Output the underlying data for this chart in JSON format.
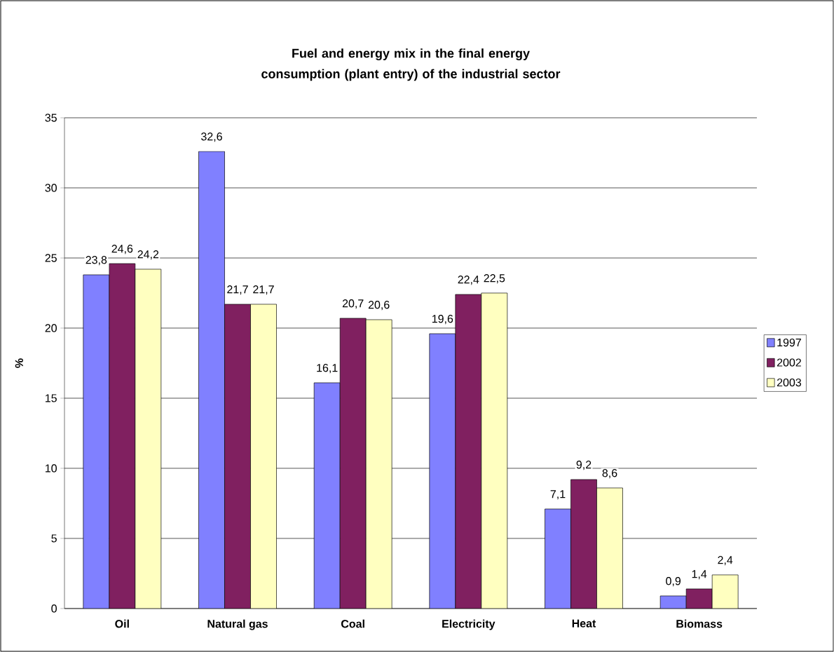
{
  "chart_data": {
    "type": "bar",
    "title": "Fuel and energy mix in the final energy consumption (plant entry) of the industrial sector",
    "ylabel": "%",
    "categories": [
      "Oil",
      "Natural gas",
      "Coal",
      "Electricity",
      "Heat",
      "Biomass"
    ],
    "series": [
      {
        "name": "1997",
        "color": "#8080ff",
        "values": [
          23.8,
          32.6,
          16.1,
          19.6,
          7.1,
          0.9
        ],
        "value_labels": [
          "23,8",
          "32,6",
          "16,1",
          "19,6",
          "7,1",
          "0,9"
        ]
      },
      {
        "name": "2002",
        "color": "#802060",
        "values": [
          24.6,
          21.7,
          20.7,
          22.4,
          9.2,
          1.4
        ],
        "value_labels": [
          "24,6",
          "21,7",
          "20,7",
          "22,4",
          "9,2",
          "1,4"
        ]
      },
      {
        "name": "2003",
        "color": "#ffffc0",
        "values": [
          24.2,
          21.7,
          20.6,
          22.5,
          8.6,
          2.4
        ],
        "value_labels": [
          "24,2",
          "21,7",
          "20,6",
          "22,5",
          "8,6",
          "2,4"
        ]
      }
    ],
    "ylim": [
      0,
      35
    ],
    "yticks": [
      0,
      5,
      10,
      15,
      20,
      25,
      30,
      35
    ],
    "grid": "y",
    "legend": "right"
  }
}
